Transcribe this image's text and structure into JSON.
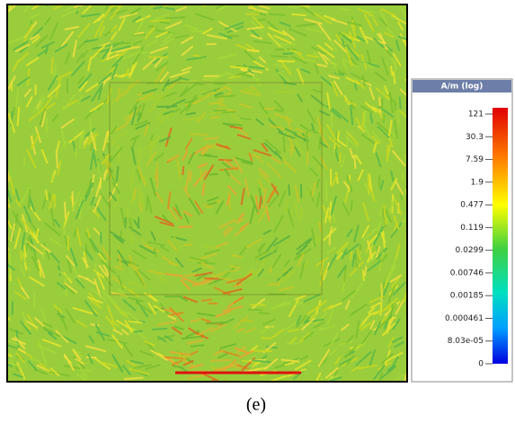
{
  "figure": {
    "caption": "(e)",
    "colorbar": {
      "title": "A/m (log)",
      "labels": [
        "121",
        "30.3",
        "7.59",
        "1.9",
        "0.477",
        "0.119",
        "0.0299",
        "0.00746",
        "0.00185",
        "0.000461",
        "8.03e-05",
        "0"
      ]
    }
  }
}
